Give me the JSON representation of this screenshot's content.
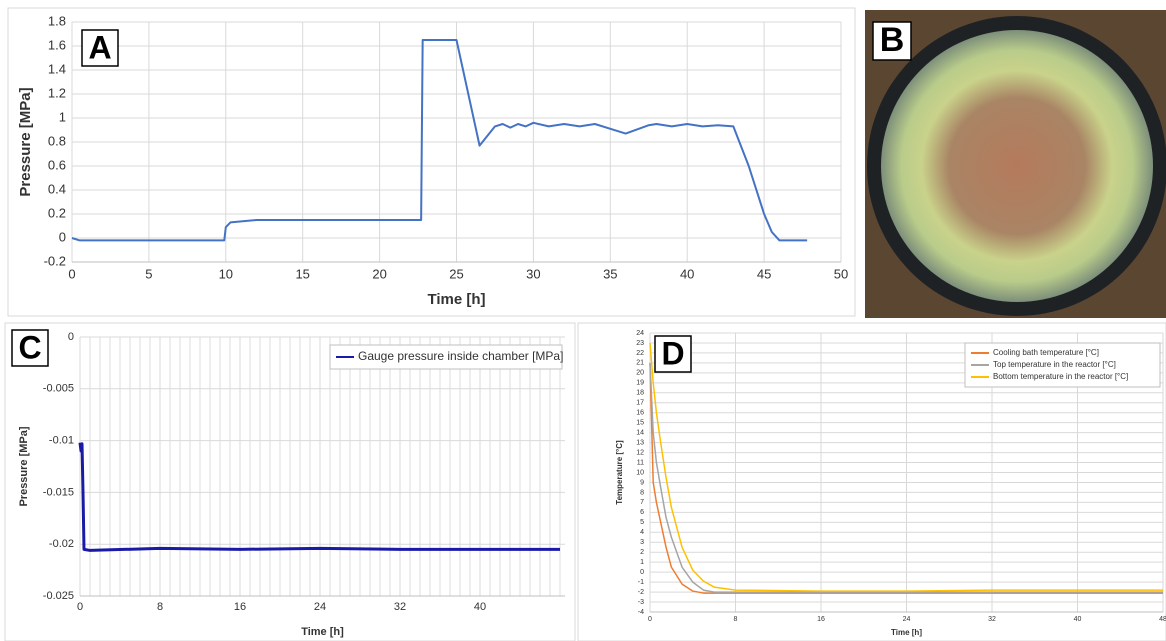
{
  "chart_data": [
    {
      "type": "line",
      "panel_label": "A",
      "xlabel": "Time [h]",
      "ylabel": "Pressure [MPa]",
      "color": "#4472c4",
      "grid": true,
      "x": [
        0,
        0.5,
        1,
        9.9,
        10,
        10.3,
        12,
        22.7,
        22.8,
        25,
        26.5,
        27,
        27.5,
        28,
        28.5,
        29,
        29.5,
        30,
        31,
        32,
        33,
        34,
        36,
        37.5,
        38,
        39,
        40,
        41,
        42,
        43,
        44,
        45,
        45.5,
        46,
        47.8
      ],
      "values": [
        0,
        -0.02,
        -0.02,
        -0.02,
        0.09,
        0.13,
        0.15,
        0.15,
        1.65,
        1.65,
        0.77,
        0.85,
        0.93,
        0.95,
        0.92,
        0.95,
        0.93,
        0.96,
        0.93,
        0.95,
        0.93,
        0.95,
        0.87,
        0.94,
        0.95,
        0.93,
        0.95,
        0.93,
        0.94,
        0.93,
        0.6,
        0.2,
        0.05,
        -0.02,
        -0.02
      ],
      "xlim": [
        0,
        50
      ],
      "xticks": [
        0,
        5,
        10,
        15,
        20,
        25,
        30,
        35,
        40,
        45,
        50
      ],
      "ylim": [
        -0.2,
        1.8
      ],
      "yticks": [
        -0.2,
        0,
        0.2,
        0.4,
        0.6,
        0.8,
        1,
        1.2,
        1.4,
        1.6,
        1.8
      ]
    },
    {
      "type": "line",
      "panel_label": "C",
      "xlabel": "Time [h]",
      "ylabel": "Pressure [MPa]",
      "grid": true,
      "legend": "top-right",
      "x": [
        0,
        0.1,
        0.2,
        0.3,
        0.4,
        1,
        8,
        16,
        24,
        32,
        40,
        48
      ],
      "series": [
        {
          "name": "Gauge pressure inside chamber [MPa]",
          "color": "#1a1aa6",
          "values": [
            -0.0102,
            -0.011,
            -0.0103,
            -0.015,
            -0.0205,
            -0.0206,
            -0.0204,
            -0.0205,
            -0.0204,
            -0.0205,
            -0.0205,
            -0.0205
          ]
        }
      ],
      "xlim": [
        0,
        48.5
      ],
      "xticks": [
        0,
        8,
        16,
        24,
        32,
        40
      ],
      "ylim": [
        -0.025,
        0
      ],
      "yticks": [
        -0.025,
        -0.02,
        -0.015,
        -0.01,
        -0.005,
        0
      ]
    },
    {
      "type": "line",
      "panel_label": "D",
      "xlabel": "Time [h]",
      "ylabel": "Temperature [°C]",
      "grid": true,
      "legend": "top-right",
      "x": [
        0,
        0.3,
        0.6,
        1,
        1.5,
        2,
        3,
        4,
        5,
        6,
        8,
        16,
        24,
        32,
        40,
        48
      ],
      "series": [
        {
          "name": "Cooling bath temperature [°C]",
          "color": "#ed7d31",
          "values": [
            21,
            9,
            7,
            5,
            2.5,
            0.5,
            -1.2,
            -1.9,
            -2.1,
            -2.1,
            -2.1,
            -2.1,
            -2.1,
            -2.1,
            -2.1,
            -2.1
          ]
        },
        {
          "name": "Top temperature in the reactor [°C]",
          "color": "#a5a5a5",
          "values": [
            21,
            14,
            11,
            8.5,
            5.5,
            3.5,
            0.5,
            -1,
            -1.8,
            -2,
            -2,
            -2,
            -2,
            -2,
            -2,
            -2
          ]
        },
        {
          "name": "Bottom temperature in the reactor [°C]",
          "color": "#ffc000",
          "values": [
            23,
            19,
            16,
            13,
            9.5,
            6.5,
            2.5,
            0.2,
            -0.9,
            -1.5,
            -1.8,
            -1.9,
            -1.9,
            -1.8,
            -1.8,
            -1.8
          ]
        }
      ],
      "xlim": [
        0,
        48
      ],
      "xticks": [
        0,
        8,
        16,
        24,
        32,
        40,
        48
      ],
      "ylim": [
        -4,
        24
      ],
      "yticks": [
        -4,
        -3,
        -2,
        -1,
        0,
        1,
        2,
        3,
        4,
        5,
        6,
        7,
        8,
        9,
        10,
        11,
        12,
        13,
        14,
        15,
        16,
        17,
        18,
        19,
        20,
        21,
        22,
        23,
        24
      ]
    }
  ],
  "photo_panel": {
    "label": "B"
  }
}
